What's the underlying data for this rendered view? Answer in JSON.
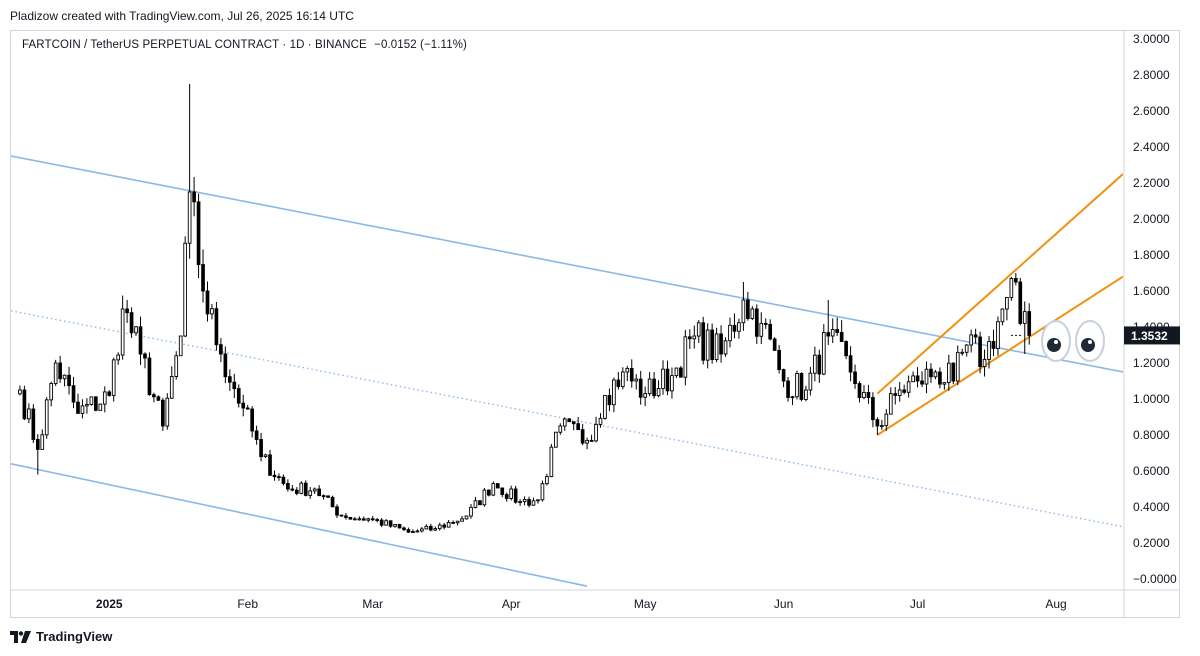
{
  "header": {
    "attribution": "Pladizow created with TradingView.com, Jul 26, 2025 16:14 UTC"
  },
  "symbol_bar": {
    "title": "FARTCOIN / TetherUS PERPETUAL CONTRACT · 1D · BINANCE",
    "change": "−0.0152 (−1.11%)"
  },
  "footer": {
    "brand": "TradingView"
  },
  "colors": {
    "up": "#ffffff",
    "down": "#000000",
    "channel": "#8bb8e8",
    "wedge": "#f0920f",
    "price_label_bg": "#131722",
    "axis_text": "#131722",
    "grid_border": "#d1d4dc"
  },
  "icons": [
    "eyes-emoji-icon",
    "tradingview-logo-icon"
  ],
  "chart_data": {
    "type": "candlestick",
    "title": "FARTCOIN / TetherUS PERPETUAL CONTRACT · 1D · BINANCE",
    "last_price_label": "1.3532",
    "y_axis": {
      "range": [
        -0.05,
        3.05
      ],
      "tick_labels": [
        "3.0000",
        "2.8000",
        "2.6000",
        "2.4000",
        "2.2000",
        "2.0000",
        "1.8000",
        "1.6000",
        "1.4000",
        "1.2000",
        "1.0000",
        "0.8000",
        "0.6000",
        "0.4000",
        "0.2000",
        "−0.0000"
      ],
      "tick_values": [
        3.0,
        2.8,
        2.6,
        2.4,
        2.2,
        2.0,
        1.8,
        1.6,
        1.4,
        1.2,
        1.0,
        0.8,
        0.6,
        0.4,
        0.2,
        0.0
      ]
    },
    "x_axis": {
      "start_date": "2024-12-10",
      "end_date": "2025-08-16",
      "month_labels": [
        "2025",
        "Feb",
        "Mar",
        "Apr",
        "May",
        "Jun",
        "Jul",
        "Aug"
      ],
      "month_dates": [
        "2025-01-01",
        "2025-02-01",
        "2025-03-01",
        "2025-04-01",
        "2025-05-01",
        "2025-06-01",
        "2025-07-01",
        "2025-08-01"
      ]
    },
    "close_anchors": [
      [
        "2024-12-12",
        1.05
      ],
      [
        "2024-12-16",
        0.72
      ],
      [
        "2024-12-20",
        1.2
      ],
      [
        "2024-12-25",
        0.92
      ],
      [
        "2025-01-01",
        1.02
      ],
      [
        "2025-01-04",
        1.5
      ],
      [
        "2025-01-08",
        1.25
      ],
      [
        "2025-01-13",
        0.85
      ],
      [
        "2025-01-17",
        1.35
      ],
      [
        "2025-01-19",
        2.15
      ],
      [
        "2025-01-22",
        1.6
      ],
      [
        "2025-01-26",
        1.25
      ],
      [
        "2025-01-31",
        0.95
      ],
      [
        "2025-02-04",
        0.68
      ],
      [
        "2025-02-10",
        0.5
      ],
      [
        "2025-02-16",
        0.5
      ],
      [
        "2025-02-22",
        0.35
      ],
      [
        "2025-03-01",
        0.33
      ],
      [
        "2025-03-09",
        0.26
      ],
      [
        "2025-03-15",
        0.28
      ],
      [
        "2025-03-22",
        0.35
      ],
      [
        "2025-03-28",
        0.53
      ],
      [
        "2025-04-03",
        0.43
      ],
      [
        "2025-04-07",
        0.44
      ],
      [
        "2025-04-12",
        0.85
      ],
      [
        "2025-04-18",
        0.77
      ],
      [
        "2025-04-22",
        1.02
      ],
      [
        "2025-04-26",
        1.15
      ],
      [
        "2025-05-01",
        1.03
      ],
      [
        "2025-05-07",
        1.13
      ],
      [
        "2025-05-12",
        1.35
      ],
      [
        "2025-05-18",
        1.25
      ],
      [
        "2025-05-23",
        1.55
      ],
      [
        "2025-05-27",
        1.42
      ],
      [
        "2025-06-01",
        1.1
      ],
      [
        "2025-06-06",
        1.05
      ],
      [
        "2025-06-11",
        1.35
      ],
      [
        "2025-06-16",
        1.15
      ],
      [
        "2025-06-22",
        0.85
      ],
      [
        "2025-06-27",
        1.05
      ],
      [
        "2025-07-01",
        1.1
      ],
      [
        "2025-07-05",
        1.15
      ],
      [
        "2025-07-09",
        1.1
      ],
      [
        "2025-07-12",
        1.3
      ],
      [
        "2025-07-16",
        1.22
      ],
      [
        "2025-07-20",
        1.5
      ],
      [
        "2025-07-23",
        1.65
      ],
      [
        "2025-07-24",
        1.42
      ],
      [
        "2025-07-26",
        1.3532
      ]
    ],
    "lines": [
      {
        "name": "channel-upper",
        "style": "solid",
        "color": "#8bb8e8",
        "points": [
          [
            "2024-12-10",
            2.35
          ],
          [
            "2025-08-16",
            1.15
          ]
        ]
      },
      {
        "name": "channel-mid",
        "style": "dotted",
        "color": "#8bb8e8",
        "points": [
          [
            "2024-12-10",
            1.49
          ],
          [
            "2025-08-16",
            0.29
          ]
        ]
      },
      {
        "name": "channel-lower",
        "style": "solid",
        "color": "#8bb8e8",
        "points": [
          [
            "2024-12-10",
            0.64
          ],
          [
            "2025-04-18",
            -0.04
          ]
        ]
      },
      {
        "name": "wedge-upper",
        "style": "solid",
        "color": "#f0920f",
        "points": [
          [
            "2025-06-22",
            1.03
          ],
          [
            "2025-08-16",
            2.25
          ]
        ]
      },
      {
        "name": "wedge-lower",
        "style": "solid",
        "color": "#f0920f",
        "points": [
          [
            "2025-06-22",
            0.8
          ],
          [
            "2025-08-16",
            1.68
          ]
        ]
      }
    ]
  }
}
